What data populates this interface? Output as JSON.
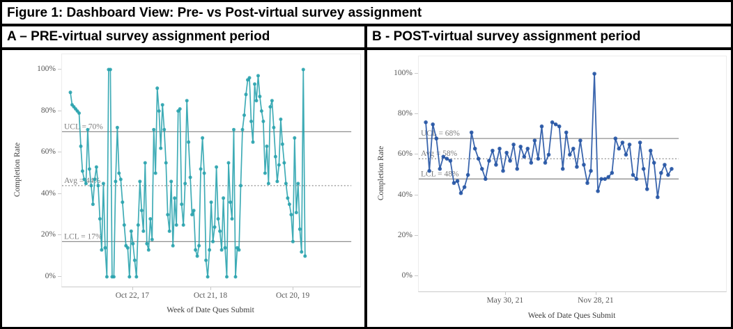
{
  "figure": {
    "title": "Figure 1: Dashboard View: Pre- vs Post-virtual survey assignment",
    "panels": [
      {
        "header": "A – PRE-virtual survey assignment period"
      },
      {
        "header": "B - POST-virtual survey assignment period"
      }
    ]
  },
  "chart_data": [
    {
      "id": "pre",
      "type": "line",
      "title": "A – PRE-virtual survey assignment period",
      "xlabel": "Week of Date Ques Submit",
      "ylabel": "Completion Rate",
      "ylim": [
        0,
        100
      ],
      "grid": false,
      "legend": "none",
      "line_color": "#2AA3AE",
      "ref_line_color": "#8f8f8f",
      "y_tick_values": [
        0,
        20,
        40,
        60,
        80,
        100
      ],
      "y_tick_labels": [
        "0%",
        "20%",
        "40%",
        "60%",
        "80%",
        "100%"
      ],
      "x_tick_labels": [
        "Oct 22, 17",
        "Oct 21, 18",
        "Oct 20, 19"
      ],
      "ref_lines": [
        {
          "label": "UCL = 70%",
          "value": 70,
          "style": "solid"
        },
        {
          "label": "Avg = 44%",
          "value": 44,
          "style": "dotted"
        },
        {
          "label": "LCL = 17%",
          "value": 17,
          "style": "solid"
        }
      ],
      "x_unit": "week",
      "values": [
        89,
        83,
        82,
        81,
        80,
        79,
        63,
        51,
        47,
        45,
        71,
        52,
        44,
        35,
        47,
        53,
        44,
        28,
        13,
        45,
        14,
        0,
        100,
        100,
        0,
        0,
        46,
        72,
        50,
        47,
        36,
        25,
        15,
        14,
        0,
        22,
        16,
        8,
        0,
        25,
        46,
        32,
        22,
        55,
        16,
        13,
        28,
        18,
        71,
        50,
        91,
        80,
        62,
        83,
        71,
        55,
        30,
        22,
        46,
        15,
        38,
        25,
        80,
        81,
        35,
        25,
        45,
        85,
        65,
        48,
        30,
        32,
        13,
        10,
        15,
        52,
        67,
        50,
        8,
        0,
        13,
        36,
        17,
        24,
        53,
        28,
        22,
        13,
        38,
        14,
        0,
        55,
        36,
        28,
        71,
        0,
        14,
        13,
        44,
        71,
        78,
        88,
        95,
        96,
        75,
        65,
        93,
        85,
        97,
        87,
        80,
        75,
        50,
        63,
        45,
        82,
        85,
        72,
        58,
        46,
        54,
        76,
        64,
        55,
        45,
        38,
        35,
        30,
        17,
        67,
        31,
        45,
        23,
        12,
        100,
        10
      ]
    },
    {
      "id": "post",
      "type": "line",
      "title": "B - POST-virtual survey assignment period",
      "xlabel": "Week of Date Ques Submit",
      "ylabel": "Completion Rate",
      "ylim": [
        0,
        100
      ],
      "grid": false,
      "legend": "none",
      "line_color": "#2554A4",
      "ref_line_color": "#8f8f8f",
      "y_tick_values": [
        0,
        20,
        40,
        60,
        80,
        100
      ],
      "y_tick_labels": [
        "0%",
        "20%",
        "40%",
        "60%",
        "80%",
        "100%"
      ],
      "x_tick_labels": [
        "May 30, 21",
        "Nov 28, 21"
      ],
      "ref_lines": [
        {
          "label": "UCL = 68%",
          "value": 68,
          "style": "solid"
        },
        {
          "label": "Avg = 58%",
          "value": 58,
          "style": "dotted"
        },
        {
          "label": "LCL = 48%",
          "value": 48,
          "style": "solid"
        }
      ],
      "x_unit": "week",
      "values": [
        76,
        52,
        75,
        68,
        53,
        59,
        58,
        57,
        46,
        47,
        41,
        44,
        50,
        71,
        63,
        58,
        53,
        48,
        57,
        62,
        55,
        63,
        52,
        61,
        57,
        65,
        53,
        64,
        59,
        63,
        56,
        67,
        58,
        74,
        56,
        60,
        76,
        75,
        74,
        53,
        71,
        60,
        63,
        54,
        67,
        55,
        46,
        52,
        100,
        42,
        48,
        48,
        49,
        51,
        68,
        63,
        66,
        60,
        65,
        50,
        48,
        66,
        53,
        43,
        62,
        56,
        39,
        51,
        55,
        50,
        53
      ]
    }
  ]
}
